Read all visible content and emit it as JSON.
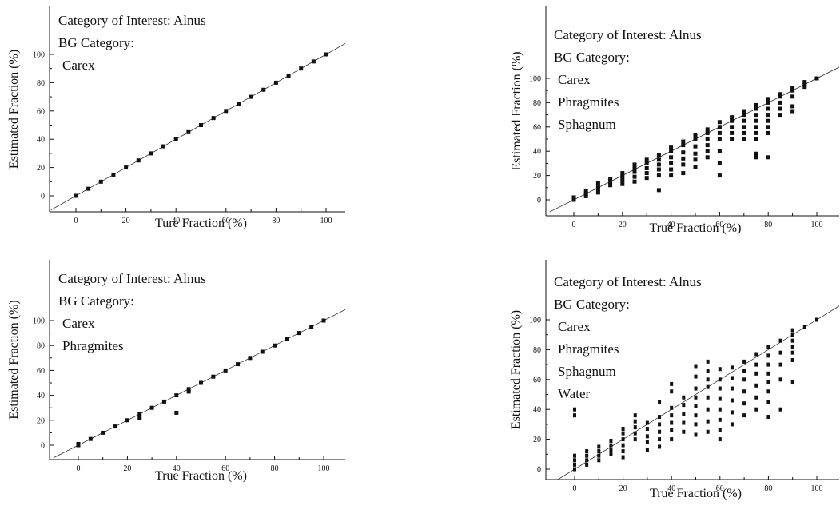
{
  "figure": {
    "colors": {
      "ink": "#111111",
      "background": "#ffffff"
    }
  },
  "chart_data": [
    {
      "type": "scatter",
      "xlabel": "Ture Fraction (%)",
      "ylabel": "Estimated Fraction (%)",
      "xlim": [
        -10,
        110
      ],
      "ylim": [
        -8,
        110
      ],
      "xticks": [
        0,
        20,
        40,
        60,
        80,
        100
      ],
      "yticks": [
        0,
        20,
        40,
        60,
        80,
        100
      ],
      "reference_line": "y = x",
      "grid": false,
      "annotations": [
        "Category of Interest: Alnus",
        "BG Category:",
        "Carex"
      ],
      "series": [
        {
          "points": [
            [
              0,
              0
            ],
            [
              5,
              5
            ],
            [
              10,
              10
            ],
            [
              15,
              15
            ],
            [
              20,
              20
            ],
            [
              25,
              25
            ],
            [
              30,
              30
            ],
            [
              35,
              35
            ],
            [
              40,
              40
            ],
            [
              45,
              45
            ],
            [
              50,
              50
            ],
            [
              55,
              55
            ],
            [
              60,
              60
            ],
            [
              65,
              65
            ],
            [
              70,
              70
            ],
            [
              75,
              75
            ],
            [
              80,
              80
            ],
            [
              85,
              85
            ],
            [
              90,
              90
            ],
            [
              95,
              95
            ],
            [
              100,
              100
            ]
          ]
        }
      ]
    },
    {
      "type": "scatter",
      "xlabel": "True Fraction (%)",
      "ylabel": "Estimated Fraction (%)",
      "xlim": [
        -10,
        110
      ],
      "ylim": [
        -8,
        110
      ],
      "xticks": [
        0,
        20,
        40,
        60,
        80,
        100
      ],
      "yticks": [
        0,
        20,
        40,
        60,
        80,
        100
      ],
      "reference_line": "y = x",
      "grid": false,
      "annotations": [
        "Category of Interest: Alnus",
        "BG Category:",
        "Carex",
        "Phragmites",
        "Sphagnum"
      ],
      "series": [
        {
          "points": [
            [
              0,
              0
            ],
            [
              0,
              2
            ],
            [
              5,
              3
            ],
            [
              5,
              5
            ],
            [
              5,
              7
            ],
            [
              10,
              6
            ],
            [
              10,
              9
            ],
            [
              10,
              11
            ],
            [
              10,
              14
            ],
            [
              15,
              12
            ],
            [
              15,
              15
            ],
            [
              15,
              17
            ],
            [
              20,
              13
            ],
            [
              20,
              16
            ],
            [
              20,
              19
            ],
            [
              20,
              22
            ],
            [
              25,
              15
            ],
            [
              25,
              19
            ],
            [
              25,
              23
            ],
            [
              25,
              26
            ],
            [
              25,
              29
            ],
            [
              30,
              18
            ],
            [
              30,
              22
            ],
            [
              30,
              26
            ],
            [
              30,
              30
            ],
            [
              30,
              33
            ],
            [
              35,
              8
            ],
            [
              35,
              20
            ],
            [
              35,
              25
            ],
            [
              35,
              29
            ],
            [
              35,
              33
            ],
            [
              35,
              37
            ],
            [
              40,
              20
            ],
            [
              40,
              25
            ],
            [
              40,
              30
            ],
            [
              40,
              35
            ],
            [
              40,
              40
            ],
            [
              40,
              43
            ],
            [
              45,
              22
            ],
            [
              45,
              29
            ],
            [
              45,
              34
            ],
            [
              45,
              39
            ],
            [
              45,
              45
            ],
            [
              45,
              48
            ],
            [
              50,
              27
            ],
            [
              50,
              33
            ],
            [
              50,
              38
            ],
            [
              50,
              44
            ],
            [
              50,
              50
            ],
            [
              50,
              53
            ],
            [
              55,
              35
            ],
            [
              55,
              40
            ],
            [
              55,
              45
            ],
            [
              55,
              50
            ],
            [
              55,
              55
            ],
            [
              55,
              58
            ],
            [
              60,
              20
            ],
            [
              60,
              30
            ],
            [
              60,
              40
            ],
            [
              60,
              50
            ],
            [
              60,
              55
            ],
            [
              60,
              60
            ],
            [
              60,
              64
            ],
            [
              65,
              50
            ],
            [
              65,
              55
            ],
            [
              65,
              60
            ],
            [
              65,
              65
            ],
            [
              65,
              68
            ],
            [
              70,
              50
            ],
            [
              70,
              55
            ],
            [
              70,
              60
            ],
            [
              70,
              65
            ],
            [
              70,
              70
            ],
            [
              70,
              73
            ],
            [
              75,
              35
            ],
            [
              75,
              38
            ],
            [
              75,
              50
            ],
            [
              75,
              55
            ],
            [
              75,
              60
            ],
            [
              75,
              65
            ],
            [
              75,
              70
            ],
            [
              75,
              75
            ],
            [
              75,
              78
            ],
            [
              80,
              35
            ],
            [
              80,
              55
            ],
            [
              80,
              60
            ],
            [
              80,
              65
            ],
            [
              80,
              70
            ],
            [
              80,
              75
            ],
            [
              80,
              80
            ],
            [
              80,
              83
            ],
            [
              85,
              70
            ],
            [
              85,
              75
            ],
            [
              85,
              80
            ],
            [
              85,
              85
            ],
            [
              85,
              87
            ],
            [
              90,
              73
            ],
            [
              90,
              77
            ],
            [
              90,
              85
            ],
            [
              90,
              90
            ],
            [
              90,
              92
            ],
            [
              95,
              93
            ],
            [
              95,
              95
            ],
            [
              95,
              97
            ],
            [
              100,
              100
            ]
          ]
        }
      ]
    },
    {
      "type": "scatter",
      "xlabel": "True Fraction (%)",
      "ylabel": "Estimated Fraction (%)",
      "xlim": [
        -10,
        110
      ],
      "ylim": [
        -8,
        110
      ],
      "xticks": [
        0,
        20,
        40,
        60,
        80,
        100
      ],
      "yticks": [
        0,
        20,
        40,
        60,
        80,
        100
      ],
      "reference_line": "y = x",
      "grid": false,
      "annotations": [
        "Category of Interest: Alnus",
        "BG Category:",
        "Carex",
        "Phragmites"
      ],
      "series": [
        {
          "points": [
            [
              0,
              0
            ],
            [
              0,
              1
            ],
            [
              5,
              5
            ],
            [
              10,
              10
            ],
            [
              15,
              15
            ],
            [
              20,
              20
            ],
            [
              25,
              22
            ],
            [
              25,
              25
            ],
            [
              30,
              30
            ],
            [
              35,
              35
            ],
            [
              40,
              26
            ],
            [
              40,
              40
            ],
            [
              45,
              43
            ],
            [
              45,
              45
            ],
            [
              50,
              50
            ],
            [
              55,
              55
            ],
            [
              60,
              60
            ],
            [
              65,
              65
            ],
            [
              70,
              70
            ],
            [
              75,
              75
            ],
            [
              80,
              80
            ],
            [
              85,
              85
            ],
            [
              90,
              90
            ],
            [
              95,
              95
            ],
            [
              100,
              100
            ]
          ]
        }
      ]
    },
    {
      "type": "scatter",
      "xlabel": "True Fraction (%)",
      "ylabel": "Estimated Fraction (%)",
      "xlim": [
        -10,
        110
      ],
      "ylim": [
        -8,
        110
      ],
      "xticks": [
        0,
        20,
        40,
        60,
        80,
        100
      ],
      "yticks": [
        0,
        20,
        40,
        60,
        80,
        100
      ],
      "reference_line": "y = x",
      "grid": false,
      "annotations": [
        "Category of Interest: Alnus",
        "BG Category:",
        "Carex",
        "Phragmites",
        "Sphagnum",
        "Water"
      ],
      "series": [
        {
          "points": [
            [
              0,
              0
            ],
            [
              0,
              3
            ],
            [
              0,
              6
            ],
            [
              0,
              9
            ],
            [
              0,
              36
            ],
            [
              0,
              40
            ],
            [
              5,
              3
            ],
            [
              5,
              6
            ],
            [
              5,
              9
            ],
            [
              5,
              12
            ],
            [
              10,
              6
            ],
            [
              10,
              9
            ],
            [
              10,
              12
            ],
            [
              10,
              15
            ],
            [
              15,
              10
            ],
            [
              15,
              13
            ],
            [
              15,
              16
            ],
            [
              15,
              19
            ],
            [
              20,
              8
            ],
            [
              20,
              12
            ],
            [
              20,
              16
            ],
            [
              20,
              20
            ],
            [
              20,
              24
            ],
            [
              20,
              27
            ],
            [
              25,
              20
            ],
            [
              25,
              24
            ],
            [
              25,
              28
            ],
            [
              25,
              32
            ],
            [
              25,
              36
            ],
            [
              30,
              13
            ],
            [
              30,
              18
            ],
            [
              30,
              22
            ],
            [
              30,
              27
            ],
            [
              30,
              31
            ],
            [
              35,
              15
            ],
            [
              35,
              20
            ],
            [
              35,
              25
            ],
            [
              35,
              30
            ],
            [
              35,
              35
            ],
            [
              35,
              45
            ],
            [
              40,
              20
            ],
            [
              40,
              26
            ],
            [
              40,
              31
            ],
            [
              40,
              36
            ],
            [
              40,
              41
            ],
            [
              40,
              52
            ],
            [
              40,
              57
            ],
            [
              45,
              25
            ],
            [
              45,
              31
            ],
            [
              45,
              37
            ],
            [
              45,
              43
            ],
            [
              45,
              48
            ],
            [
              50,
              23
            ],
            [
              50,
              30
            ],
            [
              50,
              36
            ],
            [
              50,
              42
            ],
            [
              50,
              48
            ],
            [
              50,
              54
            ],
            [
              50,
              62
            ],
            [
              50,
              69
            ],
            [
              55,
              25
            ],
            [
              55,
              32
            ],
            [
              55,
              40
            ],
            [
              55,
              48
            ],
            [
              55,
              55
            ],
            [
              55,
              60
            ],
            [
              55,
              66
            ],
            [
              55,
              72
            ],
            [
              60,
              20
            ],
            [
              60,
              26
            ],
            [
              60,
              33
            ],
            [
              60,
              40
            ],
            [
              60,
              47
            ],
            [
              60,
              54
            ],
            [
              60,
              60
            ],
            [
              60,
              67
            ],
            [
              65,
              30
            ],
            [
              65,
              38
            ],
            [
              65,
              46
            ],
            [
              65,
              54
            ],
            [
              65,
              61
            ],
            [
              65,
              68
            ],
            [
              70,
              36
            ],
            [
              70,
              44
            ],
            [
              70,
              52
            ],
            [
              70,
              60
            ],
            [
              70,
              66
            ],
            [
              70,
              72
            ],
            [
              75,
              40
            ],
            [
              75,
              48
            ],
            [
              75,
              56
            ],
            [
              75,
              64
            ],
            [
              75,
              70
            ],
            [
              75,
              77
            ],
            [
              80,
              35
            ],
            [
              80,
              45
            ],
            [
              80,
              52
            ],
            [
              80,
              58
            ],
            [
              80,
              64
            ],
            [
              80,
              70
            ],
            [
              80,
              76
            ],
            [
              80,
              82
            ],
            [
              85,
              40
            ],
            [
              85,
              60
            ],
            [
              85,
              70
            ],
            [
              85,
              78
            ],
            [
              85,
              86
            ],
            [
              90,
              58
            ],
            [
              90,
              73
            ],
            [
              90,
              78
            ],
            [
              90,
              82
            ],
            [
              90,
              86
            ],
            [
              90,
              90
            ],
            [
              90,
              93
            ],
            [
              95,
              95
            ],
            [
              100,
              100
            ]
          ]
        }
      ]
    }
  ]
}
